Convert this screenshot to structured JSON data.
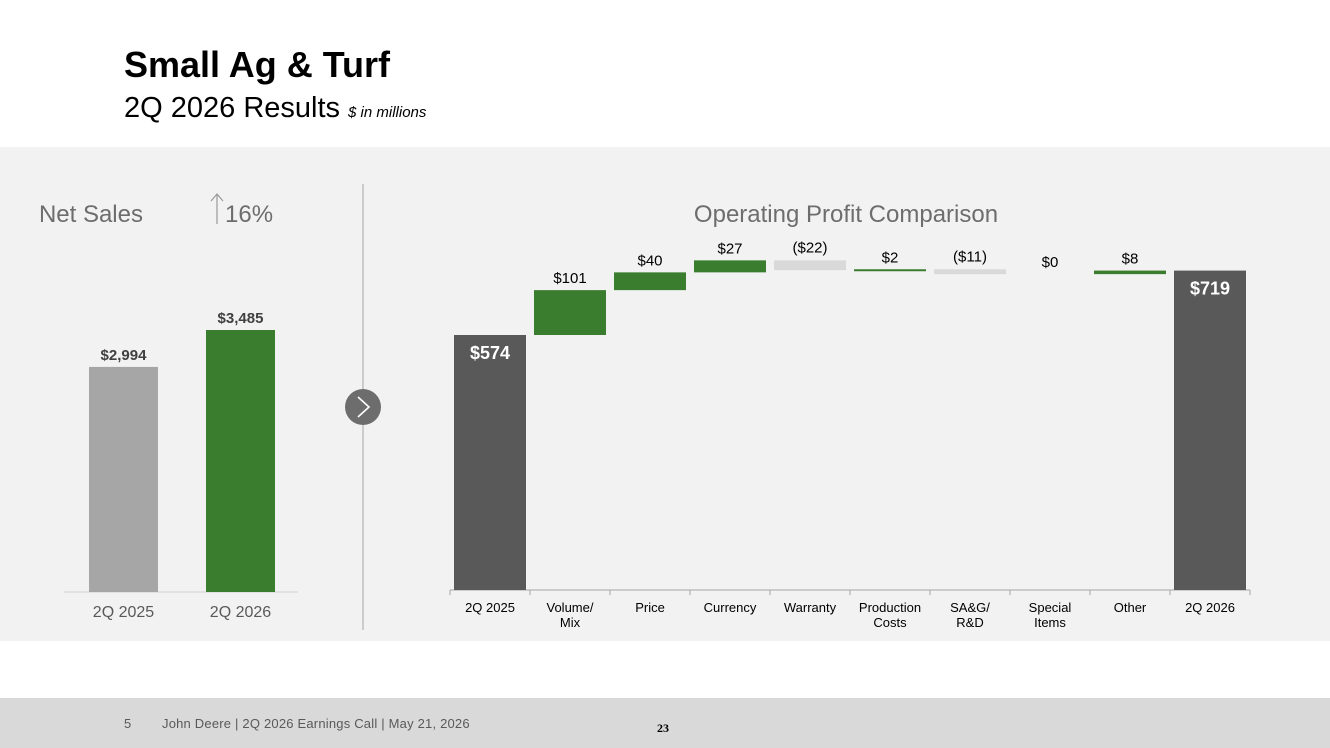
{
  "header": {
    "title": "Small Ag & Turf",
    "subtitle": "2Q 2026 Results",
    "units": "$ in millions"
  },
  "colors": {
    "green": "#3a7d2e",
    "gray_prior": "#a6a6a6",
    "dark_bar": "#595959",
    "negative": "#d9d9d9",
    "panel_bg": "#f2f2f2"
  },
  "icons": {
    "arrow": "chevron-right-icon",
    "up": "arrow-up-icon"
  },
  "chart_data": [
    {
      "type": "bar",
      "title": "Net Sales",
      "title_change": "16%",
      "categories": [
        "2Q 2025",
        "2Q 2026"
      ],
      "values": [
        2994,
        3485
      ],
      "data_labels": [
        "$2,994",
        "$3,485"
      ],
      "ylim": [
        0,
        3500
      ]
    },
    {
      "type": "bar",
      "subtype": "waterfall",
      "title": "Operating Profit Comparison",
      "categories": [
        "2Q 2025",
        "Volume/ Mix",
        "Price",
        "Currency",
        "Warranty",
        "Production Costs",
        "SA&G/ R&D",
        "Special Items",
        "Other",
        "2Q 2026"
      ],
      "values": [
        574,
        101,
        40,
        27,
        -22,
        2,
        -11,
        0,
        8,
        719
      ],
      "measure": [
        "total",
        "relative",
        "relative",
        "relative",
        "relative",
        "relative",
        "relative",
        "relative",
        "relative",
        "total"
      ],
      "data_labels": [
        "$574",
        "$101",
        "$40",
        "$27",
        "($22)",
        "$2",
        "($11)",
        "$0",
        "$8",
        "$719"
      ],
      "ylim": [
        0,
        720
      ]
    }
  ],
  "footer": {
    "page": "5",
    "text": "John Deere | 2Q 2026 Earnings Call | May 21, 2026",
    "slide_number": "23"
  }
}
